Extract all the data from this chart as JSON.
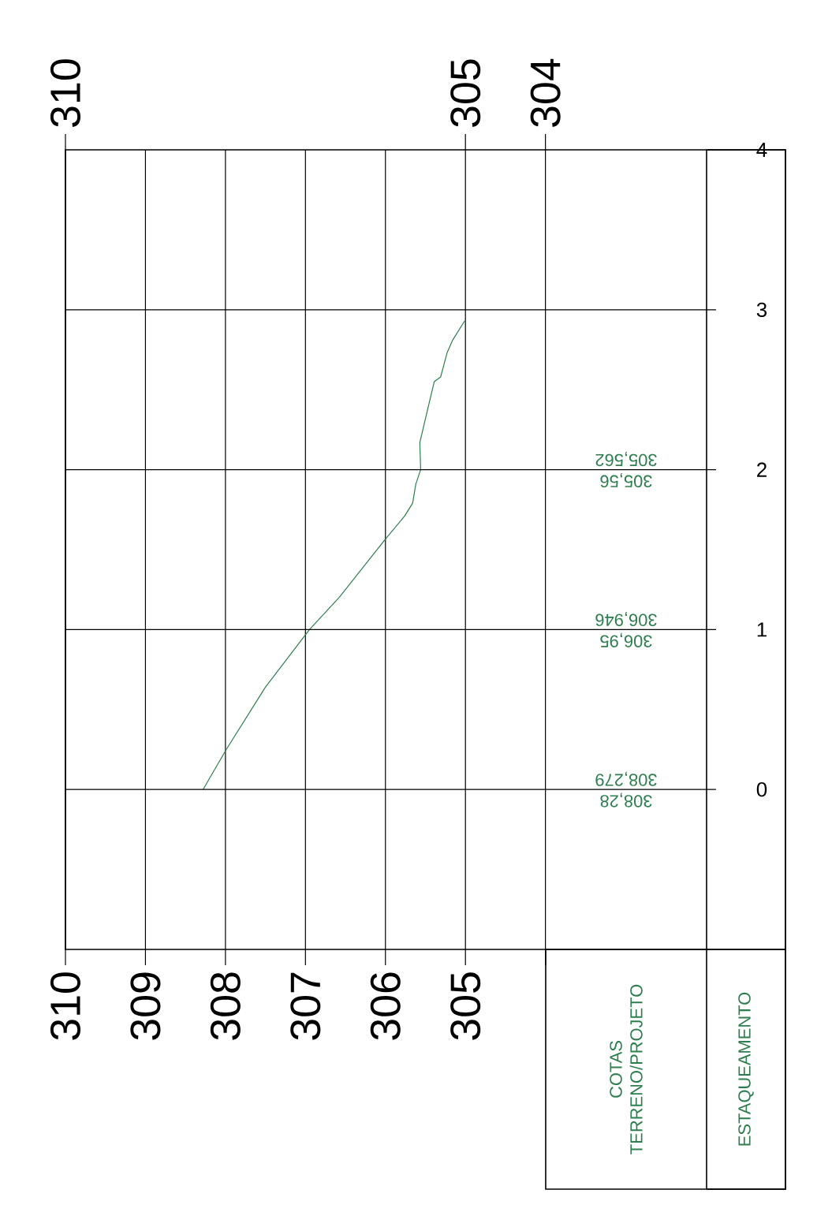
{
  "chart_data": {
    "type": "line",
    "xlim": [
      310,
      301
    ],
    "xticks": [
      310,
      309,
      308,
      307,
      306,
      305,
      {
        "value": 304,
        "label": null
      }
    ],
    "x2lim": [
      310,
      301
    ],
    "x2ticks": [
      310,
      305,
      304
    ],
    "ylim": [
      -1,
      4
    ],
    "yticks": [
      0,
      1,
      2,
      3,
      4
    ],
    "grid": true,
    "series": [
      {
        "color": "#2e7d4f",
        "x": [
          308.28,
          307.99,
          307.5,
          306.95,
          306.58,
          306.01,
          305.76,
          305.66,
          305.62,
          305.56,
          305.57,
          305.49,
          305.39,
          305.31,
          305.23,
          305.16,
          305.01
        ],
        "values": [
          0,
          0.25,
          0.64,
          1,
          1.2,
          1.56,
          1.71,
          1.79,
          1.91,
          2,
          2.17,
          2.34,
          2.55,
          2.58,
          2.73,
          2.81,
          2.93
        ]
      }
    ],
    "annotations": [
      "COTAS TERRENO/PROJETO",
      "ESTAQUEAMENTO",
      "308,28",
      "308,279",
      "306,95",
      "306,946",
      "305,56",
      "305,562"
    ]
  }
}
